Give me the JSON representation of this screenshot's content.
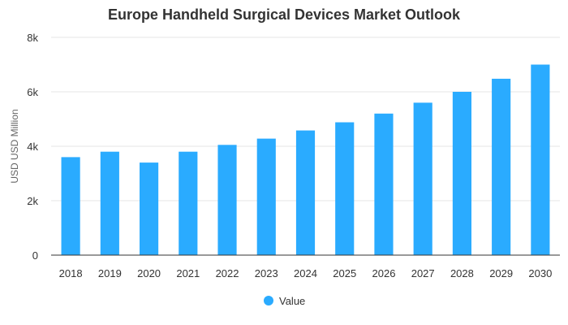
{
  "chart_data": {
    "type": "bar",
    "title": "Europe Handheld Surgical Devices Market Outlook",
    "xlabel": "",
    "ylabel": "USD USD Million",
    "categories": [
      "2018",
      "2019",
      "2020",
      "2021",
      "2022",
      "2023",
      "2024",
      "2025",
      "2026",
      "2027",
      "2028",
      "2029",
      "2030"
    ],
    "series": [
      {
        "name": "Value",
        "values": [
          3600,
          3800,
          3400,
          3800,
          4050,
          4280,
          4580,
          4880,
          5200,
          5600,
          6000,
          6480,
          7000
        ],
        "color": "#2aabff"
      }
    ],
    "ylim": [
      0,
      8000
    ],
    "yticks": [
      0,
      2000,
      4000,
      6000,
      8000
    ],
    "ytick_labels": [
      "0",
      "2k",
      "4k",
      "6k",
      "8k"
    ],
    "grid": true,
    "legend": {
      "position": "bottom-center",
      "label": "Value"
    }
  }
}
